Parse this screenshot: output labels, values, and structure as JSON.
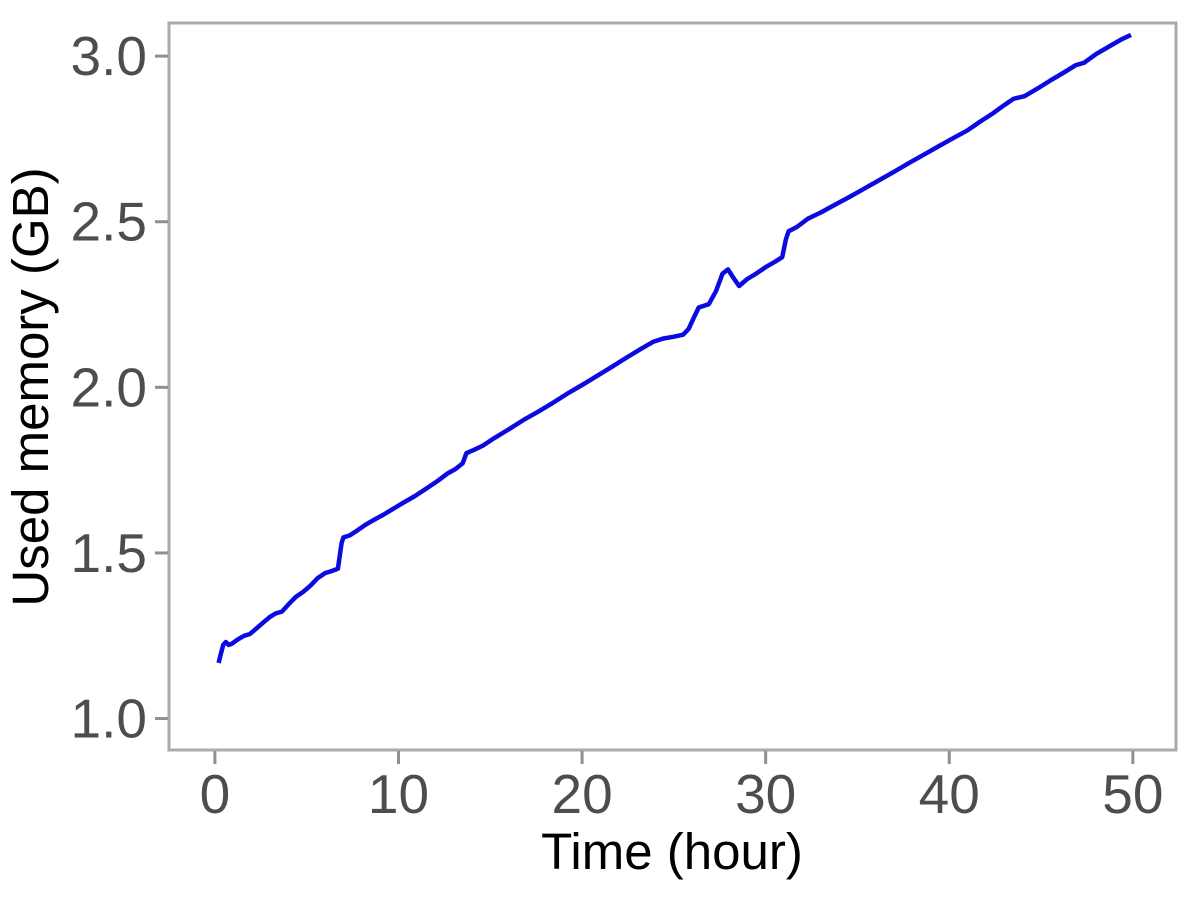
{
  "chart_data": {
    "type": "line",
    "title": "",
    "xlabel": "Time (hour)",
    "ylabel": "Used memory (GB)",
    "x_ticks": [
      0,
      10,
      20,
      30,
      40,
      50
    ],
    "x_tick_labels": [
      "0",
      "10",
      "20",
      "30",
      "40",
      "50"
    ],
    "y_ticks": [
      1.0,
      1.5,
      2.0,
      2.5,
      3.0
    ],
    "y_tick_labels": [
      "1.0",
      "1.5",
      "2.0",
      "2.5",
      "3.0"
    ],
    "xlim": [
      -2.5,
      52.35
    ],
    "ylim": [
      0.905,
      3.1
    ],
    "grid": "off",
    "legend": "none",
    "series": [
      {
        "name": "used-memory",
        "color": "#0b0be1",
        "points": [
          [
            0.2,
            1.168
          ],
          [
            0.3,
            1.19
          ],
          [
            0.45,
            1.222
          ],
          [
            0.6,
            1.231
          ],
          [
            0.75,
            1.222
          ],
          [
            0.95,
            1.227
          ],
          [
            1.25,
            1.239
          ],
          [
            1.6,
            1.25
          ],
          [
            1.9,
            1.255
          ],
          [
            2.2,
            1.269
          ],
          [
            2.6,
            1.288
          ],
          [
            3.0,
            1.307
          ],
          [
            3.3,
            1.317
          ],
          [
            3.65,
            1.323
          ],
          [
            4.0,
            1.344
          ],
          [
            4.4,
            1.367
          ],
          [
            4.8,
            1.382
          ],
          [
            5.2,
            1.401
          ],
          [
            5.6,
            1.424
          ],
          [
            6.0,
            1.439
          ],
          [
            6.4,
            1.446
          ],
          [
            6.7,
            1.452
          ],
          [
            6.9,
            1.53
          ],
          [
            7.0,
            1.547
          ],
          [
            7.35,
            1.553
          ],
          [
            7.7,
            1.566
          ],
          [
            8.2,
            1.585
          ],
          [
            8.7,
            1.601
          ],
          [
            9.2,
            1.616
          ],
          [
            9.7,
            1.633
          ],
          [
            10.3,
            1.653
          ],
          [
            10.9,
            1.672
          ],
          [
            11.5,
            1.694
          ],
          [
            12.1,
            1.716
          ],
          [
            12.7,
            1.741
          ],
          [
            13.1,
            1.753
          ],
          [
            13.5,
            1.771
          ],
          [
            13.7,
            1.801
          ],
          [
            14.1,
            1.811
          ],
          [
            14.6,
            1.824
          ],
          [
            15.2,
            1.846
          ],
          [
            16.0,
            1.873
          ],
          [
            16.8,
            1.901
          ],
          [
            17.6,
            1.926
          ],
          [
            18.4,
            1.953
          ],
          [
            19.2,
            1.981
          ],
          [
            20.0,
            2.007
          ],
          [
            20.8,
            2.034
          ],
          [
            21.6,
            2.061
          ],
          [
            22.4,
            2.089
          ],
          [
            23.2,
            2.116
          ],
          [
            23.9,
            2.138
          ],
          [
            24.4,
            2.147
          ],
          [
            25.0,
            2.153
          ],
          [
            25.5,
            2.159
          ],
          [
            25.8,
            2.176
          ],
          [
            26.1,
            2.212
          ],
          [
            26.35,
            2.241
          ],
          [
            26.9,
            2.251
          ],
          [
            27.3,
            2.291
          ],
          [
            27.65,
            2.343
          ],
          [
            27.95,
            2.356
          ],
          [
            28.25,
            2.33
          ],
          [
            28.55,
            2.306
          ],
          [
            29.0,
            2.327
          ],
          [
            29.5,
            2.344
          ],
          [
            30.0,
            2.363
          ],
          [
            30.5,
            2.379
          ],
          [
            30.9,
            2.393
          ],
          [
            31.1,
            2.447
          ],
          [
            31.25,
            2.471
          ],
          [
            31.7,
            2.484
          ],
          [
            32.3,
            2.509
          ],
          [
            33.0,
            2.528
          ],
          [
            33.8,
            2.552
          ],
          [
            34.6,
            2.576
          ],
          [
            35.4,
            2.601
          ],
          [
            36.2,
            2.626
          ],
          [
            37.0,
            2.651
          ],
          [
            37.8,
            2.677
          ],
          [
            38.6,
            2.702
          ],
          [
            39.4,
            2.727
          ],
          [
            40.2,
            2.752
          ],
          [
            41.0,
            2.776
          ],
          [
            41.7,
            2.803
          ],
          [
            42.4,
            2.828
          ],
          [
            43.0,
            2.852
          ],
          [
            43.5,
            2.871
          ],
          [
            44.1,
            2.879
          ],
          [
            44.8,
            2.902
          ],
          [
            45.5,
            2.926
          ],
          [
            46.2,
            2.949
          ],
          [
            46.9,
            2.973
          ],
          [
            47.35,
            2.98
          ],
          [
            48.0,
            3.006
          ],
          [
            48.8,
            3.032
          ],
          [
            49.4,
            3.051
          ],
          [
            49.9,
            3.064
          ]
        ]
      }
    ],
    "colors": {
      "line": "#0b0be1",
      "tick_label": "#4d4d4d",
      "axis_title": "#000000",
      "panel_border": "#ababab",
      "tick_mark": "#8f8f8f",
      "background": "#ffffff"
    }
  }
}
